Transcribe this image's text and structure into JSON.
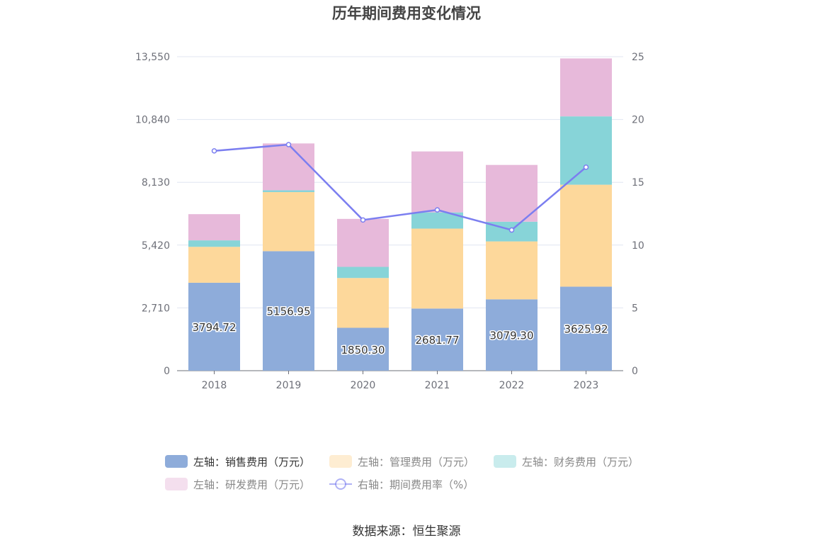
{
  "chart_data": {
    "type": "bar",
    "stacked": true,
    "title": "历年期间费用变化情况",
    "categories": [
      "2018",
      "2019",
      "2020",
      "2021",
      "2022",
      "2023"
    ],
    "y_left": {
      "ticks": [
        "0",
        "2,710",
        "5,420",
        "8,130",
        "10,840",
        "13,550"
      ],
      "min": 0,
      "max": 13550
    },
    "y_right": {
      "ticks": [
        "0",
        "5",
        "10",
        "15",
        "20",
        "25"
      ],
      "min": 0,
      "max": 25
    },
    "series": [
      {
        "name": "左轴：销售费用（万元）",
        "axis": "left",
        "type": "bar",
        "color": "#8eacda",
        "values": [
          3794.72,
          5156.95,
          1850.3,
          2681.77,
          3079.3,
          3625.92
        ],
        "labels": [
          "3794.72",
          "5156.95",
          "1850.30",
          "2681.77",
          "3079.30",
          "3625.92"
        ]
      },
      {
        "name": "左轴：管理费用（万元）",
        "axis": "left",
        "type": "bar",
        "color": "#fdd89b",
        "values": [
          1550,
          2550,
          2150,
          3450,
          2500,
          4400
        ]
      },
      {
        "name": "左轴：财务费用（万元）",
        "axis": "left",
        "type": "bar",
        "color": "#87d4d8",
        "values": [
          280,
          80,
          480,
          700,
          850,
          2950
        ]
      },
      {
        "name": "左轴：研发费用（万元）",
        "axis": "left",
        "type": "bar",
        "color": "#e7b9da",
        "values": [
          1130,
          2020,
          2070,
          2630,
          2450,
          2500
        ]
      },
      {
        "name": "右轴：期间费用率（%）",
        "axis": "right",
        "type": "line",
        "color": "#7b7ef0",
        "values": [
          17.5,
          18.0,
          12.0,
          12.8,
          11.2,
          16.2
        ]
      }
    ],
    "legend_position": "bottom",
    "grid": true
  },
  "source": "数据来源：恒生聚源"
}
